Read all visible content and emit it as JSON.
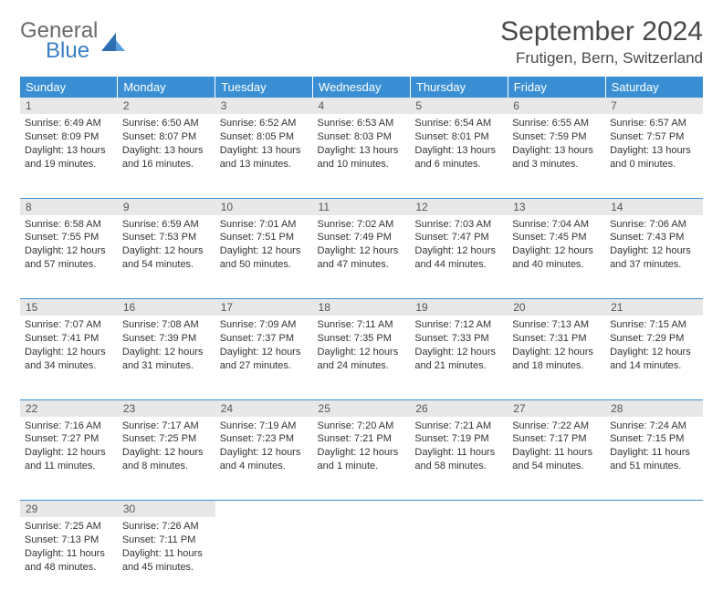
{
  "logo": {
    "text1": "General",
    "text2": "Blue"
  },
  "title": "September 2024",
  "location": "Frutigen, Bern, Switzerland",
  "colors": {
    "header_bg": "#3a8fd4",
    "header_text": "#ffffff",
    "daynum_bg": "#e8e8e8",
    "border": "#3a8fd4",
    "logo_gray": "#6a6a6a",
    "logo_blue": "#3a7fc4"
  },
  "weekdays": [
    "Sunday",
    "Monday",
    "Tuesday",
    "Wednesday",
    "Thursday",
    "Friday",
    "Saturday"
  ],
  "weeks": [
    [
      {
        "day": "1",
        "sunrise": "Sunrise: 6:49 AM",
        "sunset": "Sunset: 8:09 PM",
        "daylight1": "Daylight: 13 hours",
        "daylight2": "and 19 minutes."
      },
      {
        "day": "2",
        "sunrise": "Sunrise: 6:50 AM",
        "sunset": "Sunset: 8:07 PM",
        "daylight1": "Daylight: 13 hours",
        "daylight2": "and 16 minutes."
      },
      {
        "day": "3",
        "sunrise": "Sunrise: 6:52 AM",
        "sunset": "Sunset: 8:05 PM",
        "daylight1": "Daylight: 13 hours",
        "daylight2": "and 13 minutes."
      },
      {
        "day": "4",
        "sunrise": "Sunrise: 6:53 AM",
        "sunset": "Sunset: 8:03 PM",
        "daylight1": "Daylight: 13 hours",
        "daylight2": "and 10 minutes."
      },
      {
        "day": "5",
        "sunrise": "Sunrise: 6:54 AM",
        "sunset": "Sunset: 8:01 PM",
        "daylight1": "Daylight: 13 hours",
        "daylight2": "and 6 minutes."
      },
      {
        "day": "6",
        "sunrise": "Sunrise: 6:55 AM",
        "sunset": "Sunset: 7:59 PM",
        "daylight1": "Daylight: 13 hours",
        "daylight2": "and 3 minutes."
      },
      {
        "day": "7",
        "sunrise": "Sunrise: 6:57 AM",
        "sunset": "Sunset: 7:57 PM",
        "daylight1": "Daylight: 13 hours",
        "daylight2": "and 0 minutes."
      }
    ],
    [
      {
        "day": "8",
        "sunrise": "Sunrise: 6:58 AM",
        "sunset": "Sunset: 7:55 PM",
        "daylight1": "Daylight: 12 hours",
        "daylight2": "and 57 minutes."
      },
      {
        "day": "9",
        "sunrise": "Sunrise: 6:59 AM",
        "sunset": "Sunset: 7:53 PM",
        "daylight1": "Daylight: 12 hours",
        "daylight2": "and 54 minutes."
      },
      {
        "day": "10",
        "sunrise": "Sunrise: 7:01 AM",
        "sunset": "Sunset: 7:51 PM",
        "daylight1": "Daylight: 12 hours",
        "daylight2": "and 50 minutes."
      },
      {
        "day": "11",
        "sunrise": "Sunrise: 7:02 AM",
        "sunset": "Sunset: 7:49 PM",
        "daylight1": "Daylight: 12 hours",
        "daylight2": "and 47 minutes."
      },
      {
        "day": "12",
        "sunrise": "Sunrise: 7:03 AM",
        "sunset": "Sunset: 7:47 PM",
        "daylight1": "Daylight: 12 hours",
        "daylight2": "and 44 minutes."
      },
      {
        "day": "13",
        "sunrise": "Sunrise: 7:04 AM",
        "sunset": "Sunset: 7:45 PM",
        "daylight1": "Daylight: 12 hours",
        "daylight2": "and 40 minutes."
      },
      {
        "day": "14",
        "sunrise": "Sunrise: 7:06 AM",
        "sunset": "Sunset: 7:43 PM",
        "daylight1": "Daylight: 12 hours",
        "daylight2": "and 37 minutes."
      }
    ],
    [
      {
        "day": "15",
        "sunrise": "Sunrise: 7:07 AM",
        "sunset": "Sunset: 7:41 PM",
        "daylight1": "Daylight: 12 hours",
        "daylight2": "and 34 minutes."
      },
      {
        "day": "16",
        "sunrise": "Sunrise: 7:08 AM",
        "sunset": "Sunset: 7:39 PM",
        "daylight1": "Daylight: 12 hours",
        "daylight2": "and 31 minutes."
      },
      {
        "day": "17",
        "sunrise": "Sunrise: 7:09 AM",
        "sunset": "Sunset: 7:37 PM",
        "daylight1": "Daylight: 12 hours",
        "daylight2": "and 27 minutes."
      },
      {
        "day": "18",
        "sunrise": "Sunrise: 7:11 AM",
        "sunset": "Sunset: 7:35 PM",
        "daylight1": "Daylight: 12 hours",
        "daylight2": "and 24 minutes."
      },
      {
        "day": "19",
        "sunrise": "Sunrise: 7:12 AM",
        "sunset": "Sunset: 7:33 PM",
        "daylight1": "Daylight: 12 hours",
        "daylight2": "and 21 minutes."
      },
      {
        "day": "20",
        "sunrise": "Sunrise: 7:13 AM",
        "sunset": "Sunset: 7:31 PM",
        "daylight1": "Daylight: 12 hours",
        "daylight2": "and 18 minutes."
      },
      {
        "day": "21",
        "sunrise": "Sunrise: 7:15 AM",
        "sunset": "Sunset: 7:29 PM",
        "daylight1": "Daylight: 12 hours",
        "daylight2": "and 14 minutes."
      }
    ],
    [
      {
        "day": "22",
        "sunrise": "Sunrise: 7:16 AM",
        "sunset": "Sunset: 7:27 PM",
        "daylight1": "Daylight: 12 hours",
        "daylight2": "and 11 minutes."
      },
      {
        "day": "23",
        "sunrise": "Sunrise: 7:17 AM",
        "sunset": "Sunset: 7:25 PM",
        "daylight1": "Daylight: 12 hours",
        "daylight2": "and 8 minutes."
      },
      {
        "day": "24",
        "sunrise": "Sunrise: 7:19 AM",
        "sunset": "Sunset: 7:23 PM",
        "daylight1": "Daylight: 12 hours",
        "daylight2": "and 4 minutes."
      },
      {
        "day": "25",
        "sunrise": "Sunrise: 7:20 AM",
        "sunset": "Sunset: 7:21 PM",
        "daylight1": "Daylight: 12 hours",
        "daylight2": "and 1 minute."
      },
      {
        "day": "26",
        "sunrise": "Sunrise: 7:21 AM",
        "sunset": "Sunset: 7:19 PM",
        "daylight1": "Daylight: 11 hours",
        "daylight2": "and 58 minutes."
      },
      {
        "day": "27",
        "sunrise": "Sunrise: 7:22 AM",
        "sunset": "Sunset: 7:17 PM",
        "daylight1": "Daylight: 11 hours",
        "daylight2": "and 54 minutes."
      },
      {
        "day": "28",
        "sunrise": "Sunrise: 7:24 AM",
        "sunset": "Sunset: 7:15 PM",
        "daylight1": "Daylight: 11 hours",
        "daylight2": "and 51 minutes."
      }
    ],
    [
      {
        "day": "29",
        "sunrise": "Sunrise: 7:25 AM",
        "sunset": "Sunset: 7:13 PM",
        "daylight1": "Daylight: 11 hours",
        "daylight2": "and 48 minutes."
      },
      {
        "day": "30",
        "sunrise": "Sunrise: 7:26 AM",
        "sunset": "Sunset: 7:11 PM",
        "daylight1": "Daylight: 11 hours",
        "daylight2": "and 45 minutes."
      },
      null,
      null,
      null,
      null,
      null
    ]
  ]
}
